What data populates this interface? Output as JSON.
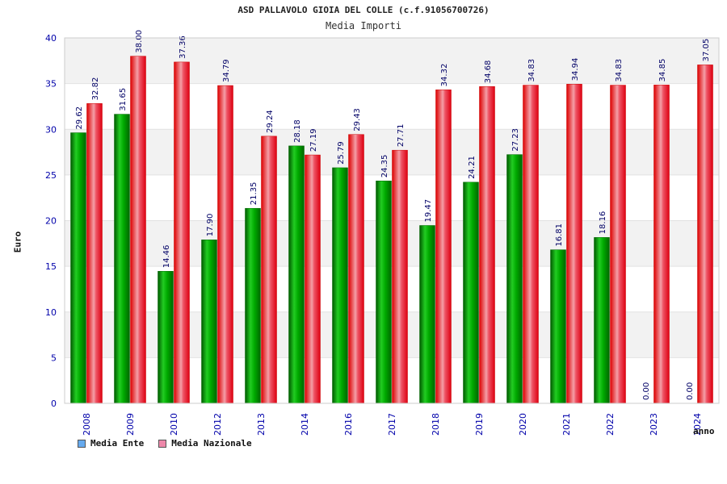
{
  "chart_data": {
    "type": "bar",
    "title": "ASD PALLAVOLO GIOIA DEL COLLE (c.f.91056700726)",
    "subtitle": "Media Importi",
    "xlabel": "anno",
    "ylabel": "Euro",
    "ylim": [
      0,
      40
    ],
    "yticks": [
      "0",
      "5",
      "10",
      "15",
      "20",
      "25",
      "30",
      "35",
      "40"
    ],
    "grid": true,
    "legend_position": "bottom-left",
    "categories": [
      "2008",
      "2009",
      "2010",
      "2012",
      "2013",
      "2014",
      "2016",
      "2017",
      "2018",
      "2019",
      "2020",
      "2021",
      "2022",
      "2023",
      "2024"
    ],
    "series": [
      {
        "name": "Media Ente",
        "color": "#009900",
        "legend_color": "#66aaee",
        "values": [
          29.62,
          31.65,
          14.46,
          17.9,
          21.35,
          28.18,
          25.79,
          24.35,
          19.47,
          24.21,
          27.23,
          16.81,
          18.16,
          0.0,
          0.0
        ],
        "labels": [
          "29.62",
          "31.65",
          "14.46",
          "17.90",
          "21.35",
          "28.18",
          "25.79",
          "24.35",
          "19.47",
          "24.21",
          "27.23",
          "16.81",
          "18.16",
          "0.00",
          "0.00"
        ]
      },
      {
        "name": "Media Nazionale",
        "color": "#ee1111",
        "legend_color": "#ee88aa",
        "values": [
          32.82,
          38.0,
          37.36,
          34.79,
          29.24,
          27.19,
          29.43,
          27.71,
          34.32,
          34.68,
          34.83,
          34.94,
          34.83,
          34.85,
          37.05
        ],
        "labels": [
          "32.82",
          "38.00",
          "37.36",
          "34.79",
          "29.24",
          "27.19",
          "29.43",
          "27.71",
          "34.32",
          "34.68",
          "34.83",
          "34.94",
          "34.83",
          "34.85",
          "37.05"
        ]
      }
    ]
  }
}
